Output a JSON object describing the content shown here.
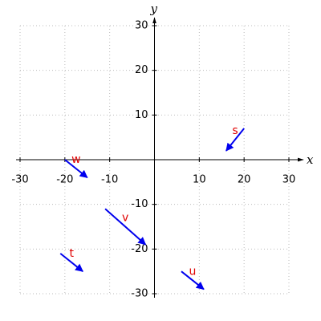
{
  "chart_data": {
    "type": "vector",
    "x_label": "x",
    "y_label": "y",
    "xlim": [
      -30,
      30
    ],
    "ylim": [
      -30,
      30
    ],
    "xticks": [
      -30,
      -20,
      -10,
      10,
      20,
      30
    ],
    "yticks": [
      -30,
      -20,
      -10,
      10,
      20,
      30
    ],
    "grid": true,
    "color": "#0000ee",
    "label_color": "#e00000",
    "vectors": [
      {
        "name": "s",
        "x0": 20,
        "y0": 7,
        "x1": 16,
        "y1": 2
      },
      {
        "name": "w",
        "x0": -20,
        "y0": 0,
        "x1": -15,
        "y1": -4
      },
      {
        "name": "v",
        "x0": -11,
        "y0": -11,
        "x1": -2,
        "y1": -19
      },
      {
        "name": "t",
        "x0": -21,
        "y0": -21,
        "x1": -16,
        "y1": -25
      },
      {
        "name": "u",
        "x0": 6,
        "y0": -25,
        "x1": 11,
        "y1": -29
      }
    ]
  }
}
